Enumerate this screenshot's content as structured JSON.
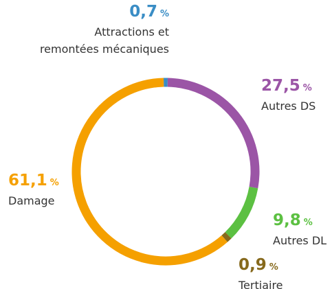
{
  "chart_data": {
    "type": "donut",
    "categories": [
      "Attractions et\nremontées mécaniques",
      "Autres DS",
      "Autres DL",
      "Tertiaire",
      "Damage"
    ],
    "values": [
      0.7,
      27.5,
      9.8,
      0.9,
      61.1
    ],
    "value_labels": [
      "0,7",
      "27,5",
      "9,8",
      "0,9",
      "61,1"
    ],
    "unit": "%",
    "colors": [
      "#3a8dc5",
      "#9b55a6",
      "#5cc042",
      "#86691c",
      "#f5a000"
    ]
  }
}
